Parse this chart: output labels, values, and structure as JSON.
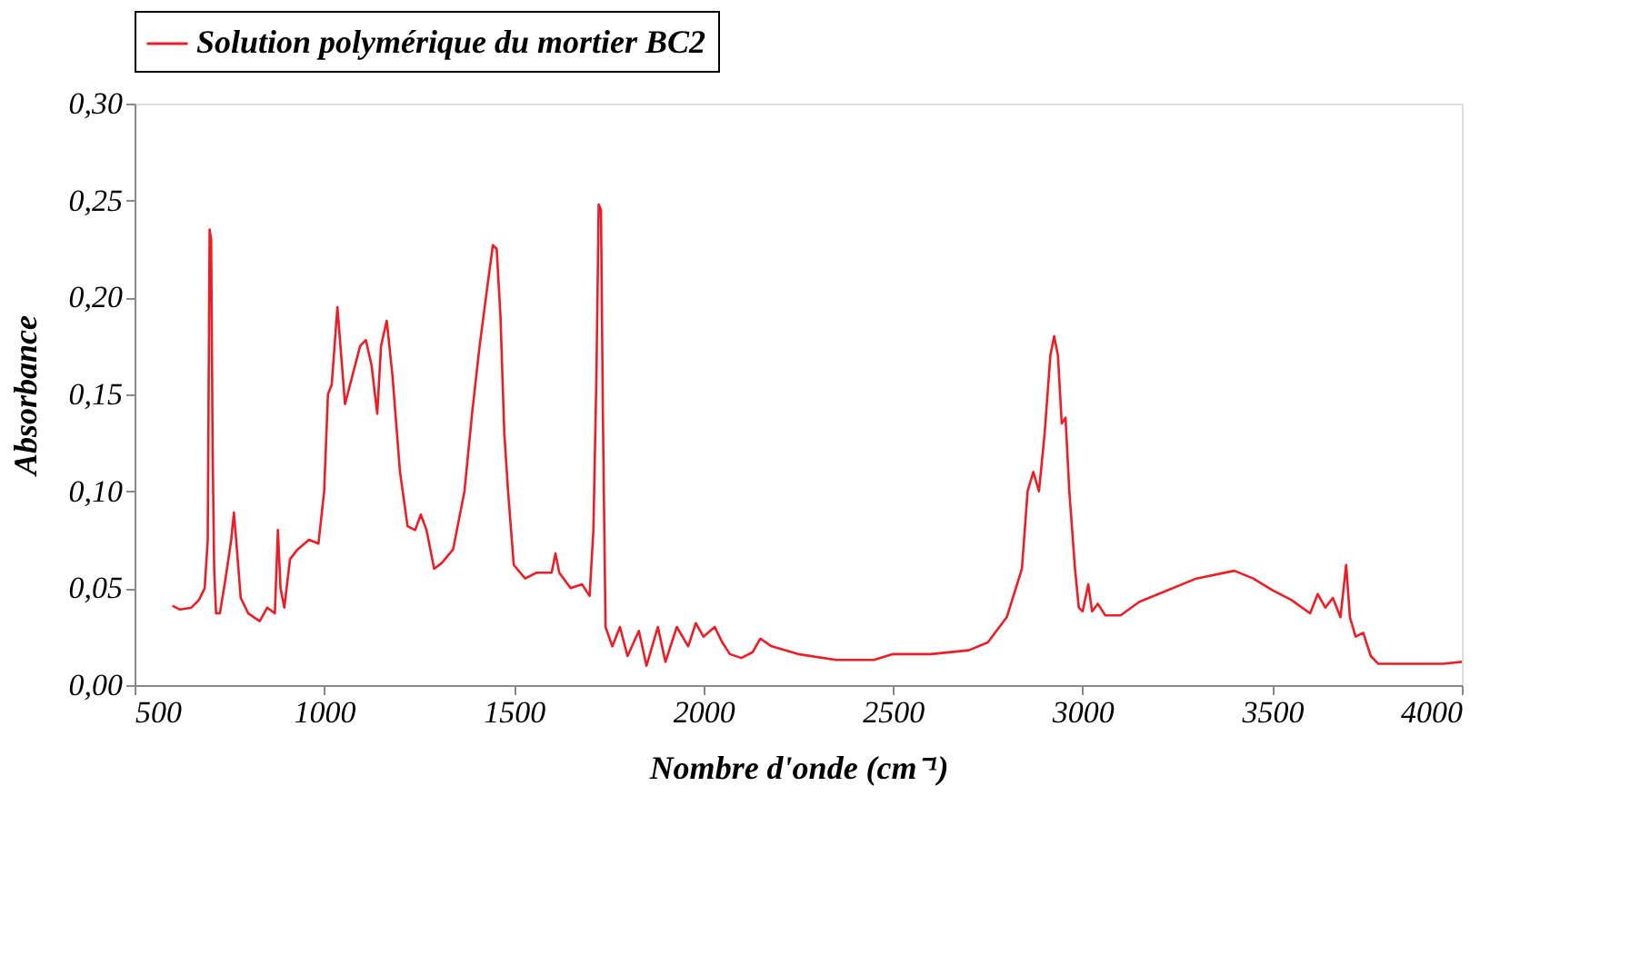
{
  "chart_data": {
    "type": "line",
    "xlabel": "Nombre d'onde (cm⁻¹)",
    "ylabel": "Absorbance",
    "xlim": [
      500,
      4000
    ],
    "xticks": [
      500,
      1000,
      1500,
      2000,
      2500,
      3000,
      3500,
      4000
    ],
    "ylim": [
      0,
      0.3
    ],
    "yticks": [
      {
        "value": 0,
        "label": "0,00"
      },
      {
        "value": 0.05,
        "label": "0,05"
      },
      {
        "value": 0.1,
        "label": "0,10"
      },
      {
        "value": 0.15,
        "label": "0,15"
      },
      {
        "value": 0.2,
        "label": "0,20"
      },
      {
        "value": 0.25,
        "label": "0,25"
      },
      {
        "value": 0.3,
        "label": "0,30"
      }
    ],
    "grid": false,
    "legend": "top",
    "marker": "none",
    "line_style": "solid",
    "x": [
      600,
      620,
      650,
      670,
      685,
      693,
      698,
      702,
      706,
      710,
      715,
      725,
      740,
      755,
      762,
      770,
      780,
      800,
      830,
      850,
      870,
      878,
      885,
      895,
      910,
      930,
      960,
      985,
      1000,
      1010,
      1020,
      1035,
      1045,
      1055,
      1075,
      1095,
      1110,
      1125,
      1140,
      1150,
      1165,
      1180,
      1200,
      1220,
      1240,
      1255,
      1270,
      1290,
      1310,
      1340,
      1370,
      1390,
      1410,
      1430,
      1445,
      1455,
      1465,
      1475,
      1485,
      1500,
      1530,
      1560,
      1600,
      1610,
      1620,
      1650,
      1680,
      1700,
      1710,
      1718,
      1724,
      1730,
      1735,
      1742,
      1760,
      1780,
      1800,
      1830,
      1850,
      1880,
      1900,
      1930,
      1960,
      1980,
      2000,
      2030,
      2050,
      2070,
      2100,
      2130,
      2150,
      2180,
      2250,
      2350,
      2450,
      2500,
      2600,
      2700,
      2750,
      2800,
      2840,
      2855,
      2870,
      2885,
      2900,
      2915,
      2925,
      2935,
      2945,
      2955,
      2965,
      2980,
      2990,
      3000,
      3015,
      3025,
      3040,
      3060,
      3100,
      3150,
      3200,
      3300,
      3400,
      3450,
      3500,
      3550,
      3600,
      3620,
      3640,
      3660,
      3680,
      3695,
      3705,
      3720,
      3740,
      3760,
      3780,
      3850,
      3950,
      4000
    ],
    "series": [
      {
        "name": "Solution polymérique du mortier BC2",
        "color": "#ee1c25",
        "values": [
          0.041,
          0.039,
          0.04,
          0.044,
          0.05,
          0.075,
          0.235,
          0.23,
          0.12,
          0.06,
          0.037,
          0.037,
          0.055,
          0.075,
          0.089,
          0.07,
          0.045,
          0.037,
          0.033,
          0.04,
          0.037,
          0.08,
          0.05,
          0.04,
          0.065,
          0.07,
          0.075,
          0.073,
          0.1,
          0.15,
          0.155,
          0.195,
          0.17,
          0.145,
          0.16,
          0.175,
          0.178,
          0.165,
          0.14,
          0.175,
          0.188,
          0.16,
          0.11,
          0.082,
          0.08,
          0.088,
          0.08,
          0.06,
          0.063,
          0.07,
          0.1,
          0.14,
          0.175,
          0.205,
          0.227,
          0.225,
          0.19,
          0.13,
          0.1,
          0.062,
          0.055,
          0.058,
          0.058,
          0.068,
          0.058,
          0.05,
          0.052,
          0.046,
          0.08,
          0.16,
          0.248,
          0.245,
          0.14,
          0.03,
          0.02,
          0.03,
          0.015,
          0.028,
          0.01,
          0.03,
          0.012,
          0.03,
          0.02,
          0.032,
          0.025,
          0.03,
          0.022,
          0.016,
          0.014,
          0.017,
          0.024,
          0.02,
          0.016,
          0.013,
          0.013,
          0.016,
          0.016,
          0.018,
          0.022,
          0.035,
          0.06,
          0.1,
          0.11,
          0.1,
          0.13,
          0.17,
          0.18,
          0.17,
          0.135,
          0.138,
          0.1,
          0.06,
          0.04,
          0.038,
          0.052,
          0.038,
          0.042,
          0.036,
          0.036,
          0.043,
          0.047,
          0.055,
          0.059,
          0.055,
          0.049,
          0.044,
          0.037,
          0.047,
          0.04,
          0.045,
          0.035,
          0.062,
          0.035,
          0.025,
          0.027,
          0.015,
          0.011,
          0.011,
          0.011,
          0.012
        ]
      }
    ]
  }
}
